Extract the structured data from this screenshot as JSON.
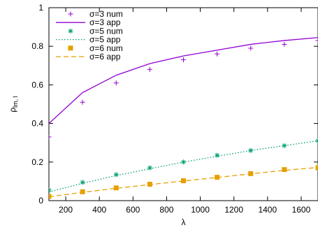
{
  "chart_data": {
    "type": "line",
    "title": "",
    "xlabel": "λ",
    "ylabel_main": "ρ",
    "ylabel_sub": "lm, l",
    "xlim": [
      100,
      1700
    ],
    "ylim": [
      0,
      1
    ],
    "xticks": [
      200,
      400,
      600,
      800,
      1000,
      1200,
      1400,
      1600
    ],
    "yticks": [
      0,
      0.2,
      0.4,
      0.6,
      0.8,
      1
    ],
    "grid": false,
    "legend_position": "top-left",
    "series": [
      {
        "name": "σ=3 num",
        "kind": "points",
        "marker": "plus",
        "color": "#9400d3",
        "x": [
          100,
          300,
          500,
          700,
          900,
          1100,
          1300,
          1500,
          1700
        ],
        "y": [
          0.33,
          0.51,
          0.61,
          0.68,
          0.73,
          0.76,
          0.79,
          0.81,
          0.83
        ]
      },
      {
        "name": "σ=3 app",
        "kind": "line",
        "dash": "solid",
        "color": "#9400d3",
        "x": [
          100,
          300,
          500,
          700,
          900,
          1100,
          1300,
          1500,
          1700
        ],
        "y": [
          0.4,
          0.56,
          0.65,
          0.71,
          0.75,
          0.78,
          0.81,
          0.83,
          0.845
        ]
      },
      {
        "name": "σ=5 num",
        "kind": "points",
        "marker": "star",
        "color": "#009e73",
        "x": [
          100,
          300,
          500,
          700,
          900,
          1100,
          1300,
          1500,
          1700
        ],
        "y": [
          0.055,
          0.095,
          0.135,
          0.17,
          0.2,
          0.235,
          0.26,
          0.285,
          0.31
        ]
      },
      {
        "name": "σ=5 app",
        "kind": "line",
        "dash": "dotted",
        "color": "#009e73",
        "x": [
          100,
          300,
          500,
          700,
          900,
          1100,
          1300,
          1500,
          1700
        ],
        "y": [
          0.045,
          0.09,
          0.13,
          0.165,
          0.2,
          0.23,
          0.26,
          0.285,
          0.31
        ]
      },
      {
        "name": "σ=6 num",
        "kind": "points",
        "marker": "square",
        "color": "#e69f00",
        "x": [
          100,
          300,
          500,
          700,
          900,
          1100,
          1300,
          1500,
          1700
        ],
        "y": [
          0.022,
          0.046,
          0.066,
          0.085,
          0.103,
          0.121,
          0.14,
          0.161,
          0.17
        ]
      },
      {
        "name": "σ=6 app",
        "kind": "line",
        "dash": "dashed",
        "color": "#e69f00",
        "x": [
          100,
          300,
          500,
          700,
          900,
          1100,
          1300,
          1500,
          1700
        ],
        "y": [
          0.02,
          0.043,
          0.064,
          0.083,
          0.102,
          0.12,
          0.139,
          0.157,
          0.172
        ]
      }
    ]
  }
}
